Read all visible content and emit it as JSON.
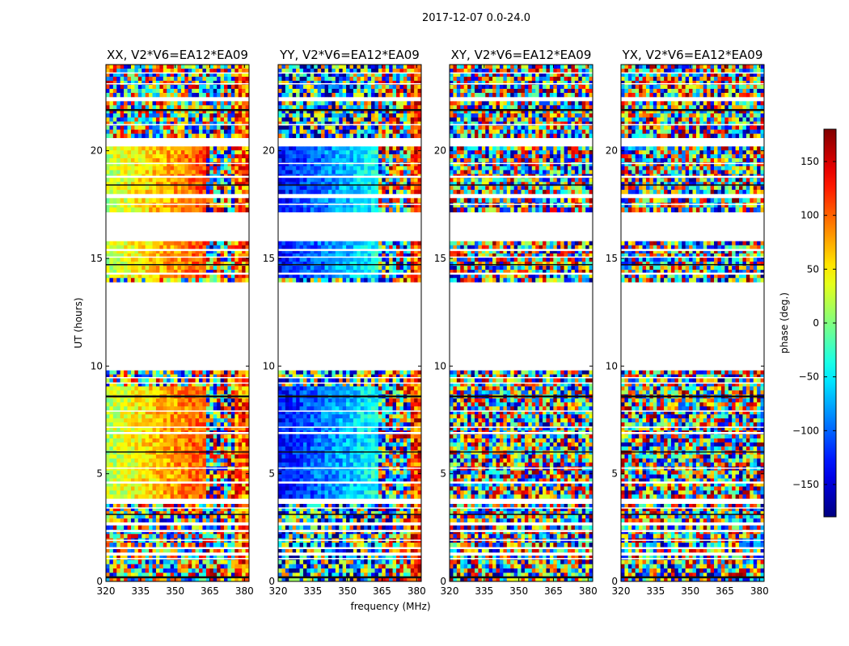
{
  "figure": {
    "suptitle": "2017-12-07 0.0-24.0"
  },
  "chart_data": {
    "type": "heatmap",
    "description_title": "2017-12-07 0.0-24.0",
    "xlabel": "frequency (MHz)",
    "ylabel": "UT (hours)",
    "xlim": [
      320,
      382
    ],
    "ylim": [
      0,
      24
    ],
    "xticks": [
      320,
      335,
      350,
      365,
      380
    ],
    "yticks": [
      0,
      5,
      10,
      15,
      20
    ],
    "colorbar": {
      "label": "phase (deg.)",
      "range": [
        -180,
        180
      ],
      "ticks": [
        -150,
        -100,
        -50,
        0,
        50,
        100,
        150
      ],
      "tick_labels": [
        "−150",
        "−100",
        "−50",
        "0",
        "50",
        "100",
        "150"
      ],
      "colormap": "jet"
    },
    "panels": [
      {
        "id": "xx",
        "title": "XX, V2*V6=EA12*EA09",
        "pattern": "xx"
      },
      {
        "id": "yy",
        "title": "YY, V2*V6=EA12*EA09",
        "pattern": "yy"
      },
      {
        "id": "xy",
        "title": "XY, V2*V6=EA12*EA09",
        "pattern": "noise"
      },
      {
        "id": "yx",
        "title": "YX, V2*V6=EA12*EA09",
        "pattern": "noise"
      }
    ],
    "data_blocks_hours": [
      [
        0.0,
        1.2
      ],
      [
        1.35,
        1.5
      ],
      [
        1.6,
        2.6
      ],
      [
        2.75,
        3.6
      ],
      [
        3.85,
        9.8
      ],
      [
        13.9,
        15.8
      ],
      [
        17.15,
        17.8
      ],
      [
        18.0,
        20.2
      ],
      [
        20.6,
        22.3
      ],
      [
        22.5,
        24.0
      ]
    ],
    "flagged_row_hours": [
      0.2,
      1.05,
      1.9,
      2.35,
      3.1,
      3.4,
      4.6,
      5.25,
      6.0,
      6.9,
      7.15,
      7.9,
      8.6,
      9.2,
      9.45,
      14.3,
      14.7,
      15.05,
      15.4,
      17.5,
      18.4,
      18.8,
      19.4,
      21.2,
      21.9,
      23.1,
      23.6
    ],
    "noise_onset_mhz": {
      "xx": 363,
      "yy": 364
    }
  }
}
